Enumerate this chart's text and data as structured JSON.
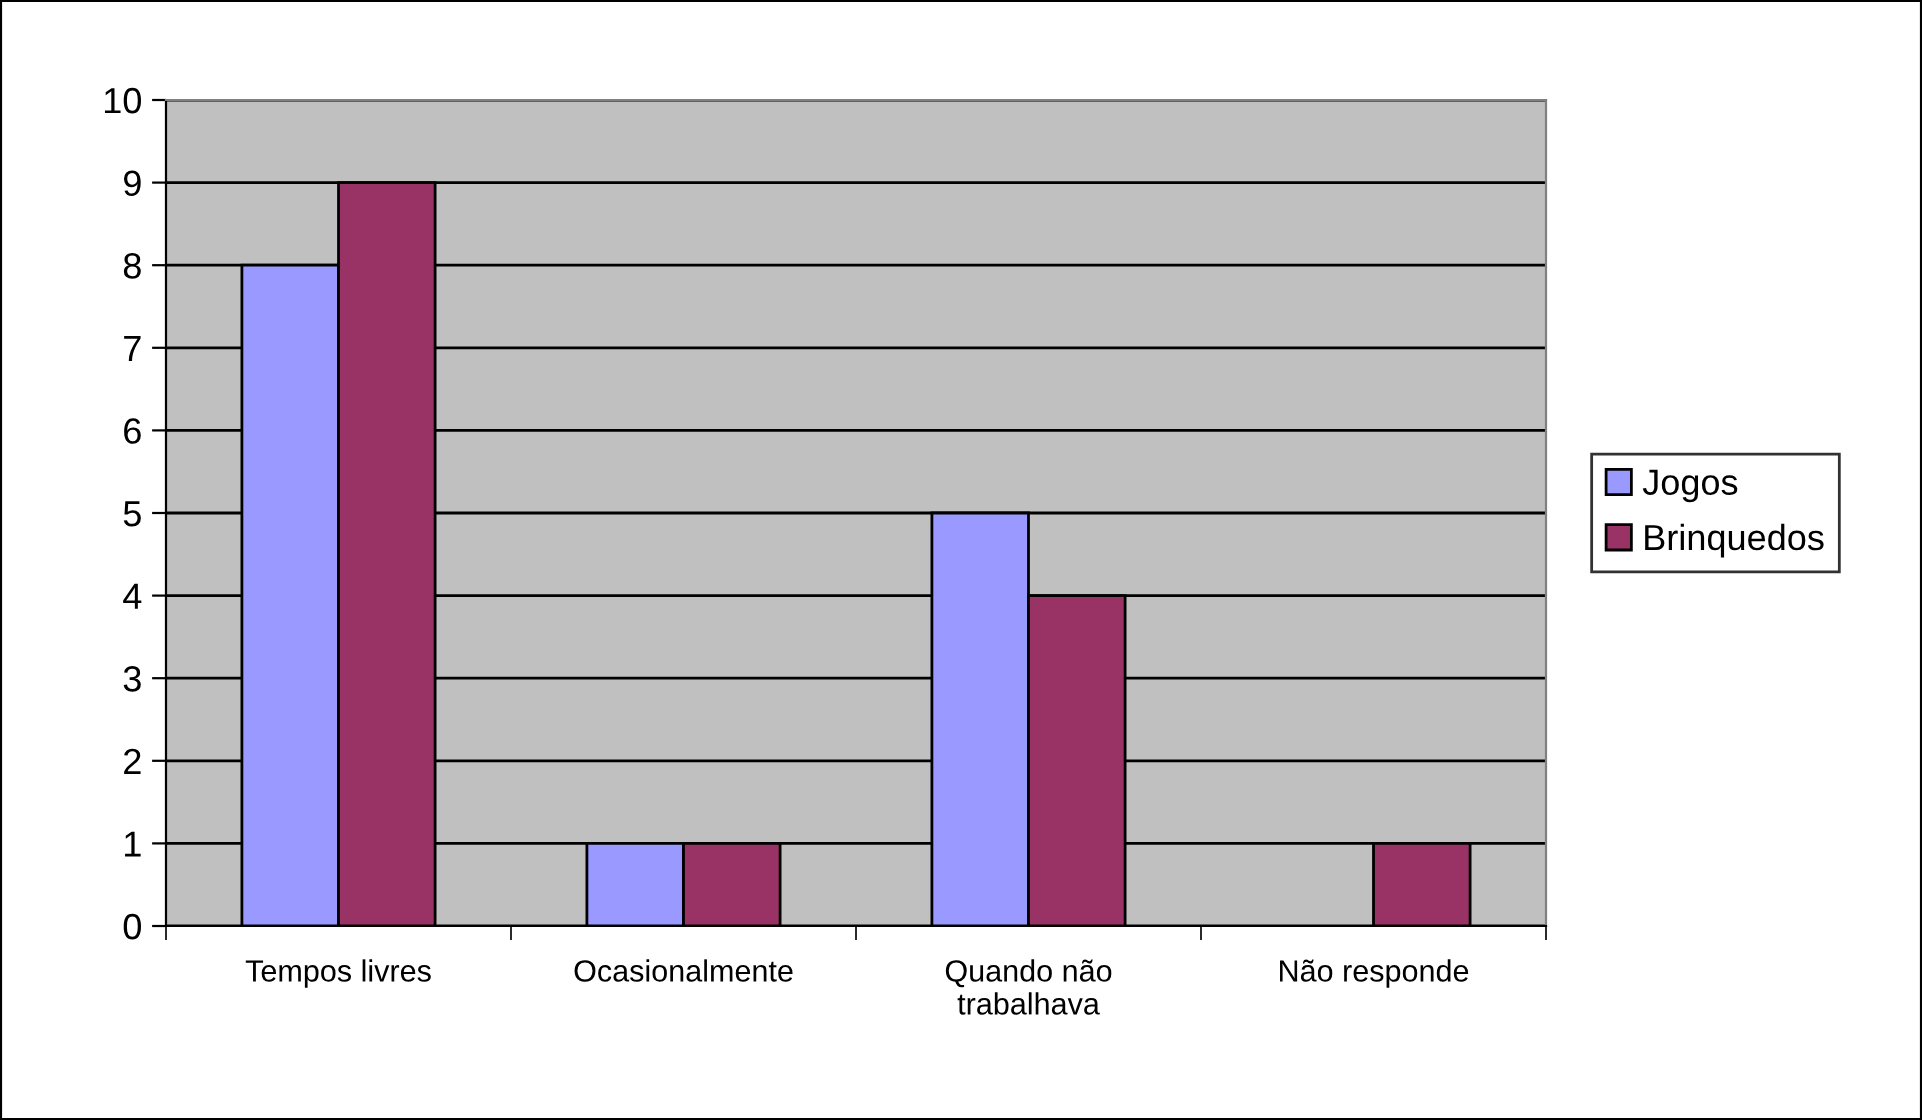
{
  "chart_data": {
    "type": "bar",
    "categories": [
      "Tempos livres",
      "Ocasionalmente",
      "Quando não trabalhava",
      "Não responde"
    ],
    "series": [
      {
        "name": "Jogos",
        "color": "#9999ff",
        "values": [
          8,
          1,
          5,
          null
        ]
      },
      {
        "name": "Brinquedos",
        "color": "#993366",
        "values": [
          9,
          1,
          4,
          1
        ]
      }
    ],
    "ylim": [
      0,
      10
    ],
    "yticks": [
      0,
      1,
      2,
      3,
      4,
      5,
      6,
      7,
      8,
      9,
      10
    ],
    "grid": "y",
    "legend": "right"
  }
}
